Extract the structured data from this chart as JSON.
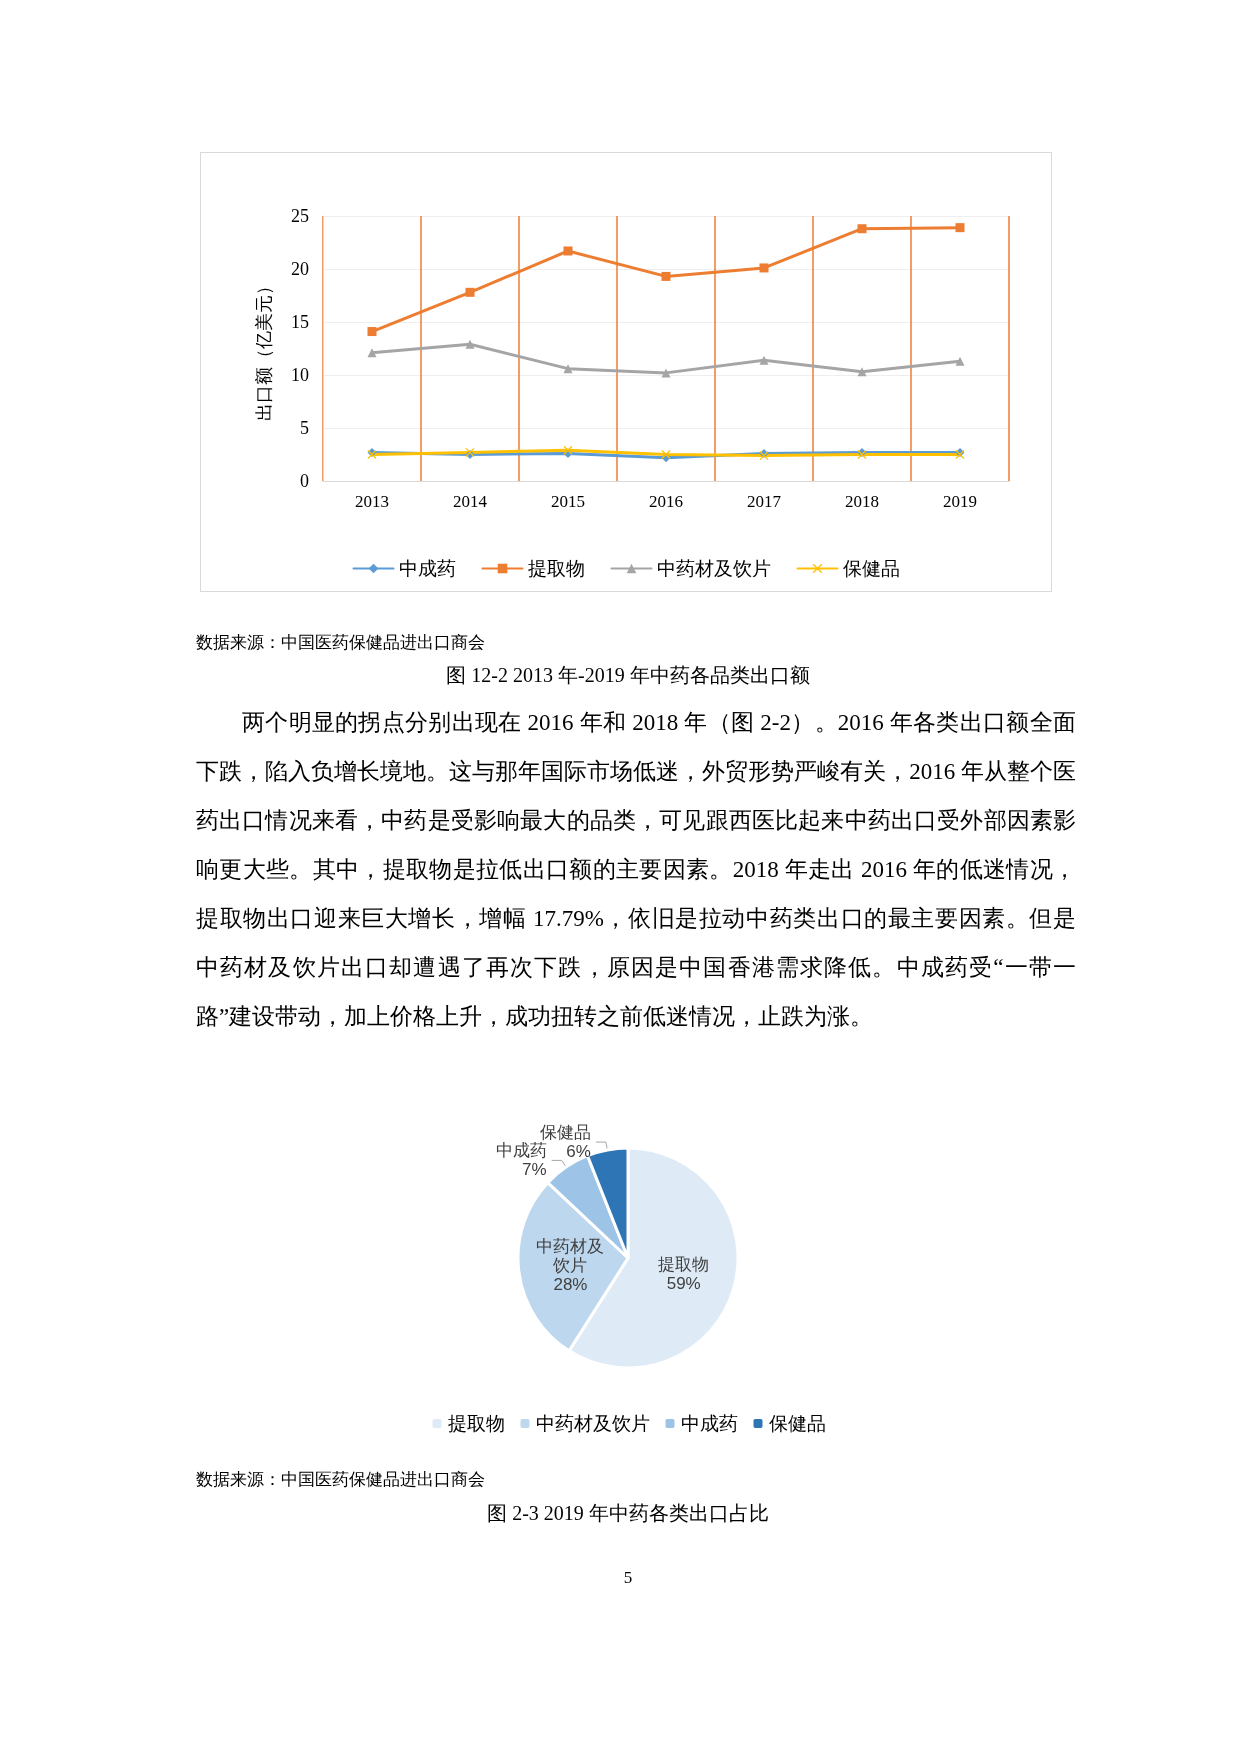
{
  "chart_data": [
    {
      "type": "line",
      "categories": [
        "2013",
        "2014",
        "2015",
        "2016",
        "2017",
        "2018",
        "2019"
      ],
      "ylabel": "出口额（亿美元）",
      "ylim": [
        0,
        25
      ],
      "yticks": [
        0,
        5,
        10,
        15,
        20,
        25
      ],
      "grid": true,
      "legend": "bottom",
      "series": [
        {
          "name": "中成药",
          "color": "#5b9bd5",
          "marker": "diamond",
          "values": [
            2.7,
            2.5,
            2.6,
            2.2,
            2.6,
            2.7,
            2.7
          ]
        },
        {
          "name": "提取物",
          "color": "#ed7d31",
          "marker": "square",
          "values": [
            14.1,
            17.8,
            21.7,
            19.3,
            20.1,
            23.8,
            23.9
          ]
        },
        {
          "name": "中药材及饮片",
          "color": "#a5a5a5",
          "marker": "triangle",
          "values": [
            12.1,
            12.9,
            10.6,
            10.2,
            11.4,
            10.3,
            11.3
          ]
        },
        {
          "name": "保健品",
          "color": "#ffc000",
          "marker": "cross",
          "values": [
            2.5,
            2.7,
            2.9,
            2.5,
            2.4,
            2.5,
            2.5
          ]
        }
      ],
      "annotations": [
        "数据来源：中国医药保健品进出口商会",
        "图 12-2 2013 年-2019 年中药各品类出口额",
        "两个明显的拐点分别出现在 2016 年和 2018 年（图 2-2）。2016 年各类出口额全面下跌，陷入负增长境地。这与那年国际市场低迷，外贸形势严峻有关，2016 年从整个医药出口情况来看，中药是受影响最大的品类，可见跟西医比起来中药出口受外部因素影响更大些。其中，提取物是拉低出口额的主要因素。2018 年走出 2016 年的低迷情况，提取物出口迎来巨大增长，增幅 17.79%，依旧是拉动中药类出口的最主要因素。但是中药材及饮片出口却遭遇了再次下跌，原因是中国香港需求降低。中成药受“一带一路”建设带动，加上价格上升，成功扭转之前低迷情况，止跌为涨。"
      ]
    },
    {
      "type": "pie",
      "categories": [
        "提取物",
        "中药材及饮片",
        "中成药",
        "保健品"
      ],
      "values": [
        59,
        28,
        7,
        6
      ],
      "colors": [
        "#deebf7",
        "#bdd7ee",
        "#9dc3e6",
        "#2e75b6"
      ],
      "value_labels": [
        "59%",
        "28%",
        "7%",
        "6%"
      ],
      "legend": "bottom",
      "annotations": [
        "数据来源：中国医药保健品进出口商会",
        "图 2-3 2019 年中药各类出口占比",
        "5"
      ]
    }
  ]
}
